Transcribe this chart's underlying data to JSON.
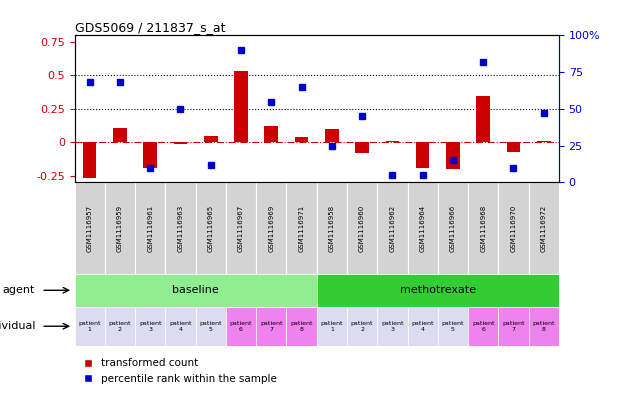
{
  "title": "GDS5069 / 211837_s_at",
  "samples": [
    "GSM1116957",
    "GSM1116959",
    "GSM1116961",
    "GSM1116963",
    "GSM1116965",
    "GSM1116967",
    "GSM1116969",
    "GSM1116971",
    "GSM1116958",
    "GSM1116960",
    "GSM1116962",
    "GSM1116964",
    "GSM1116966",
    "GSM1116968",
    "GSM1116970",
    "GSM1116972"
  ],
  "transformed_count": [
    -0.265,
    0.11,
    -0.19,
    -0.01,
    0.05,
    0.53,
    0.12,
    0.04,
    0.1,
    -0.08,
    0.01,
    -0.19,
    -0.2,
    0.35,
    -0.07,
    0.01
  ],
  "blue_squares_raw": [
    68,
    68,
    10,
    50,
    12,
    90,
    55,
    65,
    25,
    45,
    5,
    5,
    15,
    82,
    10,
    47
  ],
  "bar_color": "#cc0000",
  "square_color": "#0000cc",
  "dashed_line_color": "#cc0000",
  "ylim_left": [
    -0.3,
    0.8
  ],
  "ylim_right": [
    0,
    100
  ],
  "yticks_left": [
    -0.25,
    0.0,
    0.25,
    0.5,
    0.75
  ],
  "yticks_right": [
    0,
    25,
    50,
    75,
    100
  ],
  "hline_values": [
    0.25,
    0.5
  ],
  "baseline_color": "#90ee90",
  "methotrexate_color": "#32cd32",
  "gsm_bg_color": "#d3d3d3",
  "individual_colors_light": "#dcdcf0",
  "individual_colors_pink": "#ee82ee",
  "agent_groups": [
    {
      "label": "baseline",
      "start": 0,
      "end": 7,
      "color": "#90ee90"
    },
    {
      "label": "methotrexate",
      "start": 8,
      "end": 15,
      "color": "#32cd32"
    }
  ],
  "patient_labels": [
    "patient\n1",
    "patient\n2",
    "patient\n3",
    "patient\n4",
    "patient\n5",
    "patient\n6",
    "patient\n7",
    "patient\n8",
    "patient\n1",
    "patient\n2",
    "patient\n3",
    "patient\n4",
    "patient\n5",
    "patient\n6",
    "patient\n7",
    "patient\n8"
  ],
  "patient_pink": [
    false,
    false,
    false,
    false,
    false,
    true,
    true,
    true,
    false,
    false,
    false,
    false,
    false,
    true,
    true,
    true
  ],
  "legend_bar_label": "transformed count",
  "legend_square_label": "percentile rank within the sample",
  "background_color": "#ffffff",
  "tick_label_color_left": "#cc0000",
  "tick_label_color_right": "#0000cc"
}
